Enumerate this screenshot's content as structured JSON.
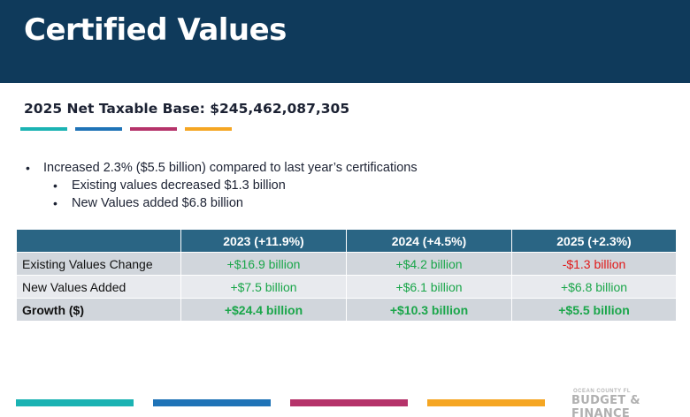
{
  "header": {
    "title": "Certified Values"
  },
  "subtitle": "2025 Net Taxable Base: $245,462,087,305",
  "accent_colors": [
    "#1bb3b3",
    "#1f73b7",
    "#b5336a",
    "#f5a623"
  ],
  "bullets": {
    "main": "Increased 2.3% ($5.5 billion) compared to last year’s certifications",
    "sub": [
      "Existing values decreased $1.3 billion",
      "New Values added $6.8 billion"
    ]
  },
  "table": {
    "headers": [
      "",
      "2023 (+11.9%)",
      "2024 (+4.5%)",
      "2025 (+2.3%)"
    ],
    "rows": [
      {
        "label": "Existing Values Change",
        "values": [
          "+$16.9 billion",
          "+$4.2 billion",
          "-$1.3 billion"
        ]
      },
      {
        "label": "New Values Added",
        "values": [
          "+$7.5 billion",
          "+$6.1 billion",
          "+$6.8 billion"
        ]
      },
      {
        "label": "Growth ($)",
        "values": [
          "+$24.4 billion",
          "+$10.3 billion",
          "+$5.5 billion"
        ]
      }
    ]
  },
  "colors": {
    "header_bg": "#0f3a5b",
    "table_header_bg": "#2a6584",
    "positive": "#1aa64a",
    "negative": "#e01818"
  },
  "logo": {
    "small_text": "OCEAN COUNTY FL",
    "big_text": "BUDGET & FINANCE"
  }
}
